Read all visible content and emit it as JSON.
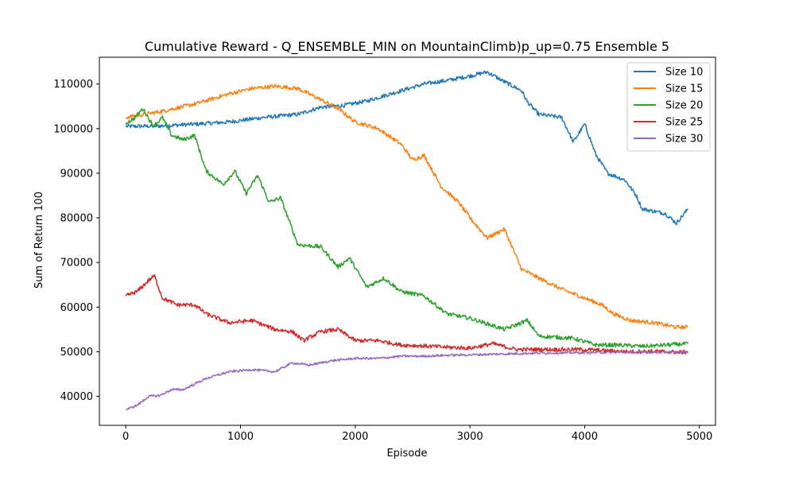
{
  "chart_data": {
    "type": "line",
    "title": "Cumulative Reward - Q_ENSEMBLE_MIN on MountainClimb)p_up=0.75 Ensemble 5",
    "xlabel": "Episode",
    "ylabel": "Sum of Return 100",
    "xlim": [
      -230,
      5140
    ],
    "ylim": [
      33500,
      116000
    ],
    "xticks": [
      0,
      1000,
      2000,
      3000,
      4000,
      5000
    ],
    "yticks": [
      40000,
      50000,
      60000,
      70000,
      80000,
      90000,
      100000,
      110000
    ],
    "legend_position": "top-right",
    "grid": false,
    "series": [
      {
        "name": "Size 10",
        "color": "#1f77b4",
        "points": [
          [
            0,
            100500
          ],
          [
            300,
            100600
          ],
          [
            600,
            101000
          ],
          [
            900,
            101500
          ],
          [
            1200,
            102500
          ],
          [
            1500,
            103200
          ],
          [
            1700,
            104800
          ],
          [
            1900,
            105200
          ],
          [
            2100,
            106200
          ],
          [
            2400,
            108500
          ],
          [
            2600,
            110000
          ],
          [
            2800,
            110800
          ],
          [
            3000,
            111800
          ],
          [
            3150,
            112700
          ],
          [
            3300,
            110500
          ],
          [
            3450,
            108500
          ],
          [
            3500,
            106000
          ],
          [
            3600,
            103200
          ],
          [
            3800,
            102500
          ],
          [
            3900,
            97000
          ],
          [
            4000,
            101000
          ],
          [
            4100,
            94000
          ],
          [
            4200,
            90000
          ],
          [
            4350,
            88500
          ],
          [
            4450,
            85000
          ],
          [
            4500,
            82000
          ],
          [
            4700,
            81000
          ],
          [
            4800,
            78800
          ],
          [
            4900,
            82000
          ]
        ]
      },
      {
        "name": "Size 15",
        "color": "#ff7f0e",
        "points": [
          [
            0,
            102500
          ],
          [
            300,
            103800
          ],
          [
            600,
            105500
          ],
          [
            900,
            107800
          ],
          [
            1100,
            109000
          ],
          [
            1300,
            109500
          ],
          [
            1500,
            109000
          ],
          [
            1700,
            106500
          ],
          [
            1850,
            104500
          ],
          [
            2000,
            101500
          ],
          [
            2200,
            100000
          ],
          [
            2400,
            96500
          ],
          [
            2500,
            93000
          ],
          [
            2600,
            94000
          ],
          [
            2750,
            87000
          ],
          [
            2900,
            83500
          ],
          [
            3000,
            80000
          ],
          [
            3150,
            75500
          ],
          [
            3300,
            77500
          ],
          [
            3450,
            68500
          ],
          [
            3600,
            66500
          ],
          [
            3800,
            64000
          ],
          [
            4000,
            62000
          ],
          [
            4150,
            60500
          ],
          [
            4250,
            58500
          ],
          [
            4400,
            57000
          ],
          [
            4600,
            56500
          ],
          [
            4800,
            55500
          ],
          [
            4900,
            55500
          ]
        ]
      },
      {
        "name": "Size 20",
        "color": "#2ca02c",
        "points": [
          [
            0,
            101200
          ],
          [
            70,
            102200
          ],
          [
            150,
            104500
          ],
          [
            240,
            100500
          ],
          [
            320,
            102500
          ],
          [
            400,
            98500
          ],
          [
            500,
            97500
          ],
          [
            600,
            98500
          ],
          [
            700,
            90500
          ],
          [
            850,
            87500
          ],
          [
            950,
            90500
          ],
          [
            1050,
            85500
          ],
          [
            1150,
            89500
          ],
          [
            1250,
            83500
          ],
          [
            1350,
            84500
          ],
          [
            1500,
            74000
          ],
          [
            1700,
            73500
          ],
          [
            1850,
            69000
          ],
          [
            1950,
            71000
          ],
          [
            2100,
            64500
          ],
          [
            2250,
            66500
          ],
          [
            2400,
            63500
          ],
          [
            2600,
            62500
          ],
          [
            2800,
            58500
          ],
          [
            3000,
            57500
          ],
          [
            3300,
            55000
          ],
          [
            3500,
            57000
          ],
          [
            3600,
            53500
          ],
          [
            3900,
            53000
          ],
          [
            4100,
            51500
          ],
          [
            4300,
            51500
          ],
          [
            4500,
            51200
          ],
          [
            4700,
            51500
          ],
          [
            4900,
            51800
          ]
        ]
      },
      {
        "name": "Size 25",
        "color": "#d62728",
        "points": [
          [
            0,
            62500
          ],
          [
            100,
            63500
          ],
          [
            200,
            66000
          ],
          [
            250,
            67000
          ],
          [
            320,
            62000
          ],
          [
            450,
            60500
          ],
          [
            600,
            60500
          ],
          [
            700,
            58500
          ],
          [
            900,
            56500
          ],
          [
            1100,
            57000
          ],
          [
            1300,
            55000
          ],
          [
            1450,
            54500
          ],
          [
            1550,
            52500
          ],
          [
            1700,
            54500
          ],
          [
            1850,
            55000
          ],
          [
            2000,
            52500
          ],
          [
            2200,
            52500
          ],
          [
            2400,
            51500
          ],
          [
            2600,
            51300
          ],
          [
            2800,
            51000
          ],
          [
            3000,
            50800
          ],
          [
            3200,
            51800
          ],
          [
            3400,
            50500
          ],
          [
            3600,
            50500
          ],
          [
            3800,
            50500
          ],
          [
            4000,
            50500
          ],
          [
            4200,
            50200
          ],
          [
            4400,
            50000
          ],
          [
            4600,
            50100
          ],
          [
            4800,
            49900
          ],
          [
            4900,
            49900
          ]
        ]
      },
      {
        "name": "Size 30",
        "color": "#9467bd",
        "points": [
          [
            0,
            37000
          ],
          [
            100,
            38000
          ],
          [
            200,
            40000
          ],
          [
            300,
            40200
          ],
          [
            400,
            41500
          ],
          [
            500,
            41500
          ],
          [
            700,
            44000
          ],
          [
            900,
            45500
          ],
          [
            1100,
            46000
          ],
          [
            1300,
            45500
          ],
          [
            1450,
            47500
          ],
          [
            1600,
            47000
          ],
          [
            1800,
            48000
          ],
          [
            2000,
            48500
          ],
          [
            2200,
            48500
          ],
          [
            2400,
            49000
          ],
          [
            2600,
            49000
          ],
          [
            2800,
            49200
          ],
          [
            3000,
            49300
          ],
          [
            3300,
            49500
          ],
          [
            3600,
            49700
          ],
          [
            4000,
            49800
          ],
          [
            4400,
            49900
          ],
          [
            4900,
            49900
          ]
        ]
      }
    ]
  }
}
